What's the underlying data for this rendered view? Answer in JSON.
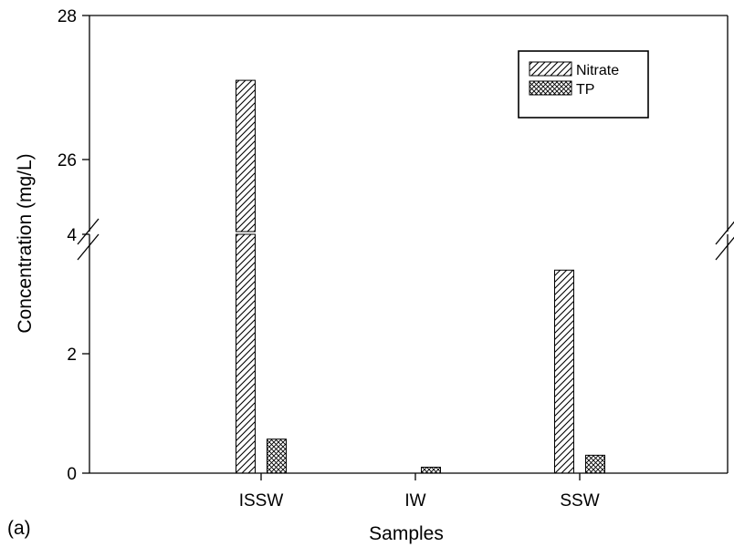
{
  "panel_label": "(a)",
  "chart_data": {
    "type": "bar",
    "title": "",
    "xlabel": "Samples",
    "ylabel": "Concentration (mg/L)",
    "categories": [
      "ISSW",
      "IW",
      "SSW"
    ],
    "series": [
      {
        "name": "Nitrate",
        "pattern": "diagonal-hatch",
        "values": [
          27.1,
          0,
          3.4
        ]
      },
      {
        "name": "TP",
        "pattern": "crosshatch",
        "values": [
          0.57,
          0.1,
          0.3
        ]
      }
    ],
    "y_axis_broken": true,
    "y_break_between": [
      4,
      25
    ],
    "ylim_lower": [
      0,
      4
    ],
    "ylim_upper": [
      25,
      28
    ],
    "lower_ticks": [
      0,
      2,
      4
    ],
    "upper_ticks": [
      26,
      28
    ],
    "grid": false,
    "legend_position": "top-right",
    "colors": {
      "bar_fill": "#ffffff",
      "hatch": "#000000",
      "axis": "#000000"
    }
  }
}
